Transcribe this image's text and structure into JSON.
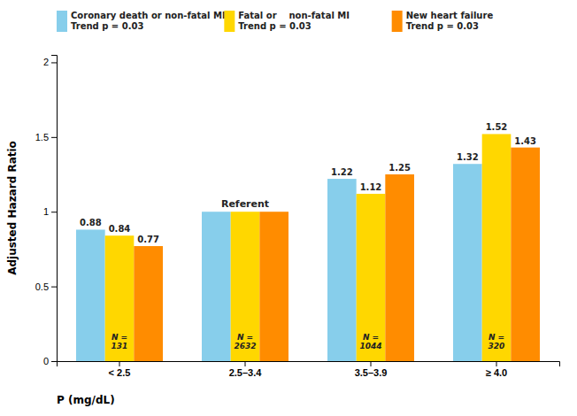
{
  "chart_data": {
    "type": "bar",
    "categories": [
      "< 2.5",
      "2.5–3.4",
      "3.5–3.9",
      "≥ 4.0"
    ],
    "series": [
      {
        "name": "Coronary death or non-fatal MI\nTrend p = 0.03",
        "color": "#87CEEB",
        "values": [
          0.88,
          1.0,
          1.22,
          1.32
        ],
        "value_labels": [
          "0.88",
          null,
          "1.22",
          "1.32"
        ]
      },
      {
        "name": "Fatal or    non-fatal MI\nTrend p = 0.03",
        "color": "#FFD700",
        "values": [
          0.84,
          1.0,
          1.12,
          1.52
        ],
        "value_labels": [
          "0.84",
          null,
          "1.12",
          "1.52"
        ]
      },
      {
        "name": "New heart failure\nTrend p = 0.03",
        "color": "#FF8C00",
        "values": [
          0.77,
          1.0,
          1.25,
          1.43
        ],
        "value_labels": [
          "0.77",
          null,
          "1.25",
          "1.43"
        ]
      }
    ],
    "n_labels": [
      "N =\n131",
      "N =\n2632",
      "N =\n1044",
      "N =\n320"
    ],
    "annotations": [
      "Referent"
    ],
    "xlabel": "P (mg/dL)",
    "ylabel": "Adjusted Hazard Ratio",
    "ylim": [
      0,
      2.05
    ],
    "yticks": [
      0,
      0.5,
      1,
      1.5,
      2
    ],
    "data_labels": true,
    "legend": "upper left",
    "grid": false
  }
}
